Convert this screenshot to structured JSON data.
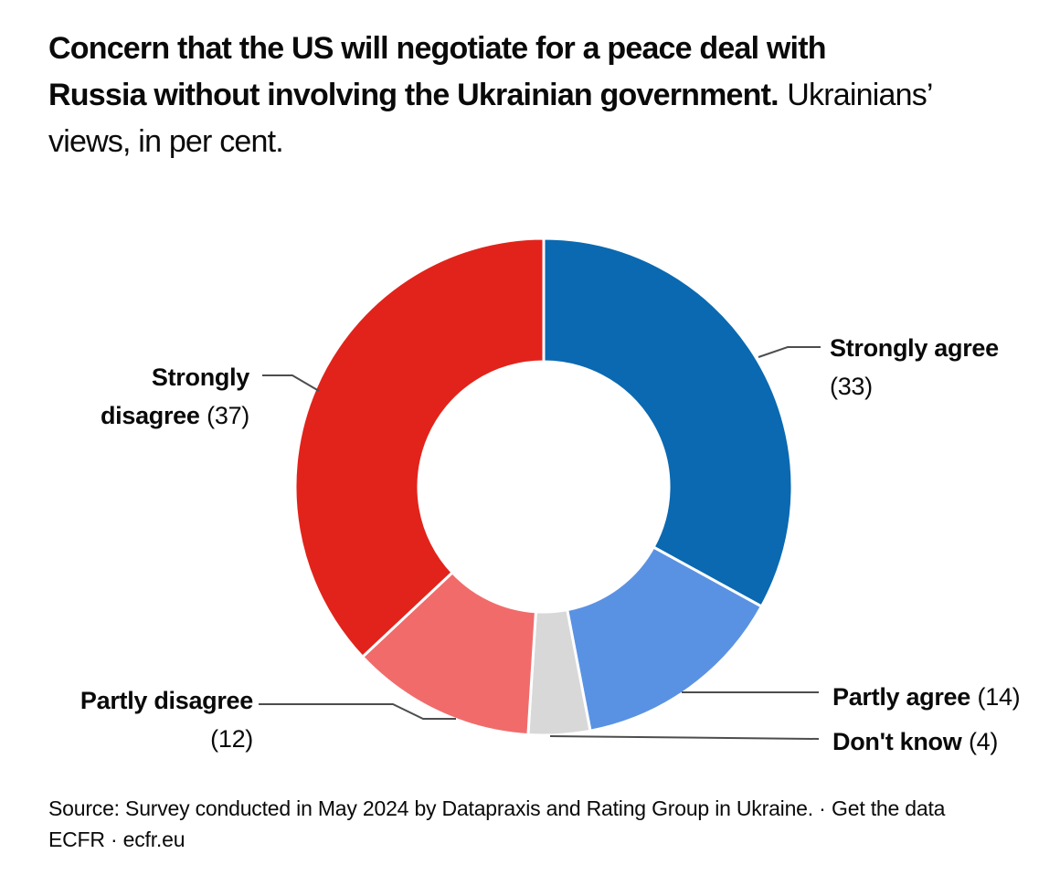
{
  "header": {
    "title_lines": [
      {
        "bold": "Concern that the US will negotiate for a peace deal with"
      },
      {
        "bold": "Russia without involving the Ukrainian government.",
        "regular": "Ukrainians’"
      },
      {
        "regular": "views, in per cent."
      }
    ]
  },
  "chart_data": {
    "type": "pie",
    "subtype": "donut",
    "title": "Concern that the US will negotiate for a peace deal with Russia without involving the Ukrainian government.",
    "subtitle": "Ukrainians’ views, in per cent.",
    "unit": "per cent",
    "start_angle_deg": -90,
    "direction": "clockwise",
    "inner_radius_ratio": 0.5,
    "categories": [
      "Strongly agree",
      "Partly agree",
      "Don't know",
      "Partly disagree",
      "Strongly disagree"
    ],
    "values": [
      33,
      14,
      4,
      12,
      37
    ],
    "slices": [
      {
        "label": "Strongly agree",
        "value": 33,
        "color": "#0a69b1"
      },
      {
        "label": "Partly agree",
        "value": 14,
        "color": "#5a92e3"
      },
      {
        "label": "Don't know",
        "value": 4,
        "color": "#d8d8d8"
      },
      {
        "label": "Partly disagree",
        "value": 12,
        "color": "#f16b6b"
      },
      {
        "label": "Strongly disagree",
        "value": 37,
        "color": "#e2231b"
      }
    ],
    "gap_color": "#ffffff",
    "leader_line_color": "#4d4d4d",
    "legend_position": "callouts-around-donut"
  },
  "callouts": {
    "strongly_agree": {
      "label": "Strongly agree",
      "value": "(33)"
    },
    "strongly_disagree": {
      "word1": "Strongly",
      "word2": "disagree",
      "value": "(37)"
    },
    "partly_disagree": {
      "label": "Partly disagree",
      "value": "(12)"
    },
    "partly_agree": {
      "label": "Partly agree",
      "value": "(14)"
    },
    "dont_know": {
      "label": "Don't know",
      "value": "(4)"
    }
  },
  "source": {
    "line1_text": "Source: Survey conducted in May 2024 by Datapraxis and Rating Group in Ukraine. ·",
    "line1_link": "Get the data",
    "line2": "ECFR · ecfr.eu"
  }
}
